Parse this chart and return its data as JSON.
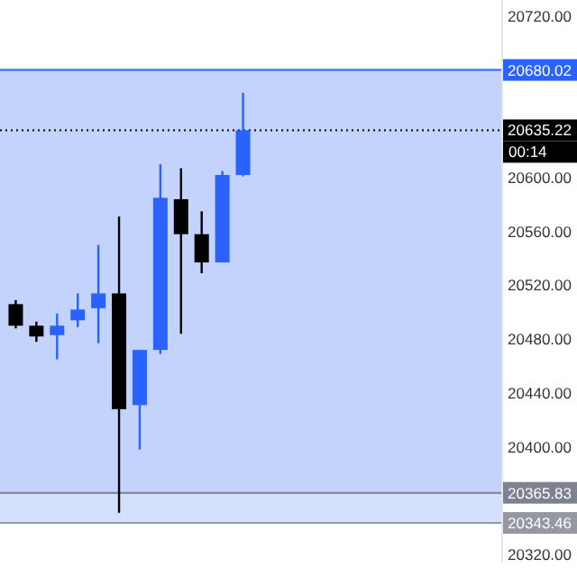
{
  "chart_data": {
    "type": "candlestick",
    "categories": [
      null,
      null,
      null,
      null,
      null,
      null,
      null,
      null,
      null,
      null,
      null,
      null,
      null,
      null,
      null,
      null,
      null,
      null,
      null,
      null,
      null,
      null,
      null,
      null
    ],
    "ohlc": [
      [
        20506,
        20509,
        20488,
        20490
      ],
      [
        20490,
        20493,
        20478,
        20482
      ],
      [
        20483,
        20499,
        20465,
        20490
      ],
      [
        20494,
        20514,
        20489,
        20502
      ],
      [
        20503,
        20550,
        20477,
        20514
      ],
      [
        20514,
        20571,
        20351,
        20428
      ],
      [
        20431,
        20472,
        20398,
        20472
      ],
      [
        20472,
        20610,
        20469,
        20585
      ],
      [
        20584,
        20607,
        20484,
        20558
      ],
      [
        20558,
        20575,
        20529,
        20537
      ],
      [
        20537,
        20605,
        20537,
        20602
      ],
      [
        20602,
        20663,
        20601,
        20635.22
      ],
      null,
      null,
      null,
      null,
      null,
      null,
      null,
      null,
      null,
      null,
      null,
      null
    ],
    "colors": [
      "#000000",
      "#000000",
      "#2962ff",
      "#2962ff",
      "#2962ff",
      "#000000",
      "#2962ff",
      "#2962ff",
      "#000000",
      "#000000",
      "#2962ff",
      "#2962ff",
      null,
      null,
      null,
      null,
      null,
      null,
      null,
      null,
      null,
      null,
      null,
      null
    ],
    "ylim": [
      20314,
      20732
    ],
    "yticks": [
      {
        "value": 20320,
        "label": "20320.00"
      },
      {
        "value": 20400,
        "label": "20400.00"
      },
      {
        "value": 20440,
        "label": "20440.00"
      },
      {
        "value": 20480,
        "label": "20480.00"
      },
      {
        "value": 20520,
        "label": "20520.00"
      },
      {
        "value": 20560,
        "label": "20560.00"
      },
      {
        "value": 20600,
        "label": "20600.00"
      },
      {
        "value": 20720,
        "label": "20720.00"
      }
    ],
    "tick_labels": "y",
    "grid": false,
    "bands": [
      {
        "axis": "y",
        "from": 20365.83,
        "to": 20680.02,
        "color": "#c3d3fc"
      },
      {
        "axis": "y",
        "from": 20343.46,
        "to": 20365.83,
        "color": "#d3e0fb"
      }
    ],
    "ref_lines": [
      {
        "axis": "y",
        "value": 20680.02,
        "label": "20680.02",
        "color": "#2962ff",
        "line_style": "solid"
      },
      {
        "axis": "y",
        "value": 20635.22,
        "label": "20635.22",
        "color": "#000000",
        "line_style": "dotted"
      },
      {
        "axis": "y",
        "value": 20365.83,
        "label": "20365.83",
        "color": "#7d8190",
        "line_style": "solid"
      },
      {
        "axis": "y",
        "value": 20343.46,
        "label": "20343.46",
        "color": "#9598a1",
        "line_style": "solid"
      }
    ],
    "annotations": [
      "00:14"
    ]
  }
}
